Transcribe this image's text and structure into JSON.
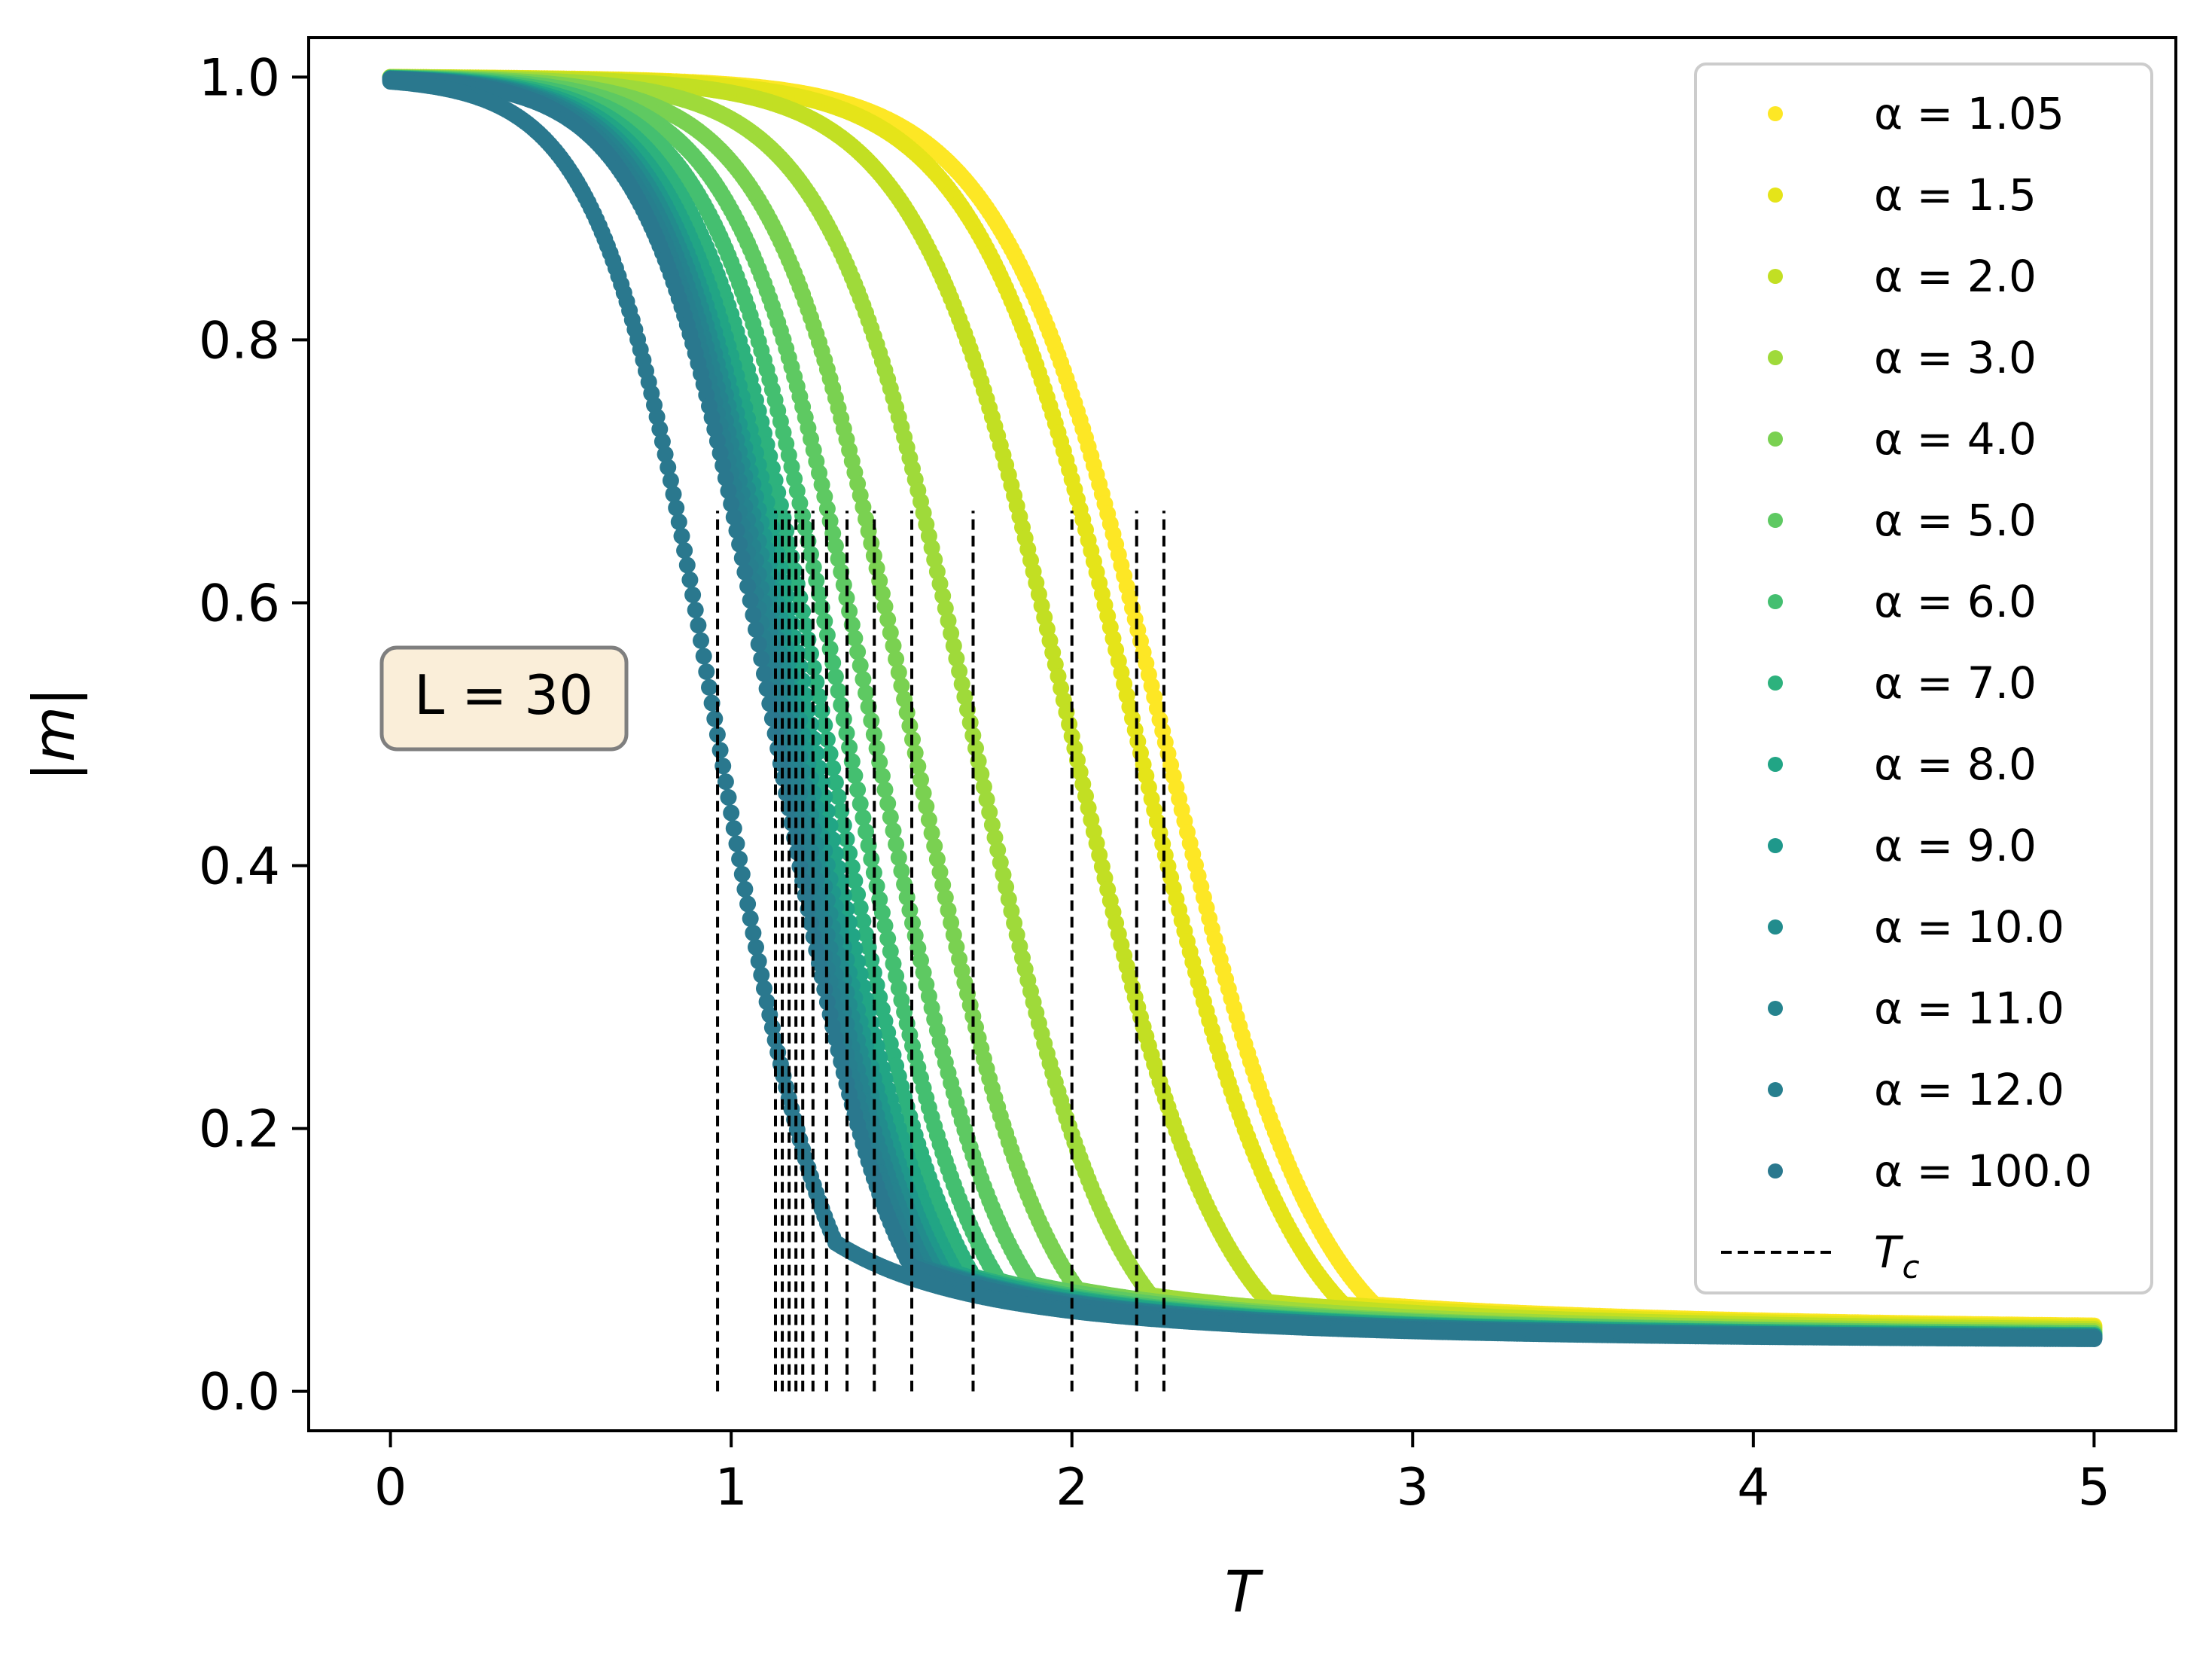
{
  "chart_data": {
    "type": "scatter",
    "title": "",
    "xlabel": "T",
    "ylabel": "|m|",
    "xlim": [
      -0.24,
      5.24
    ],
    "ylim": [
      -0.03,
      1.03
    ],
    "x_ticks": [
      0,
      1,
      2,
      3,
      4,
      5
    ],
    "x_tick_labels": [
      "0",
      "1",
      "2",
      "3",
      "4",
      "5"
    ],
    "y_ticks": [
      0.0,
      0.2,
      0.4,
      0.6,
      0.8,
      1.0
    ],
    "y_tick_labels": [
      "0.0",
      "0.2",
      "0.4",
      "0.6",
      "0.8",
      "1.0"
    ],
    "grid": false,
    "legend_position": "upper-right",
    "annotation": "L = 30",
    "annotation_box_color": "#f5deb3",
    "temperature_range": [
      0.0,
      5.0
    ],
    "series": [
      {
        "name": "α = 1.05",
        "color": "#fde725",
        "tc": 2.27,
        "high_T_value": 0.045
      },
      {
        "name": "α = 1.5",
        "color": "#e5e419",
        "tc": 2.19,
        "high_T_value": 0.044
      },
      {
        "name": "α = 2.0",
        "color": "#c2df23",
        "tc": 2.0,
        "high_T_value": 0.043
      },
      {
        "name": "α = 3.0",
        "color": "#9fda3a",
        "tc": 1.71,
        "high_T_value": 0.042
      },
      {
        "name": "α = 4.0",
        "color": "#7ad151",
        "tc": 1.53,
        "high_T_value": 0.041
      },
      {
        "name": "α = 5.0",
        "color": "#5ec962",
        "tc": 1.42,
        "high_T_value": 0.041
      },
      {
        "name": "α = 6.0",
        "color": "#44bf70",
        "tc": 1.34,
        "high_T_value": 0.04
      },
      {
        "name": "α = 7.0",
        "color": "#2db27d",
        "tc": 1.28,
        "high_T_value": 0.04
      },
      {
        "name": "α = 8.0",
        "color": "#21a585",
        "tc": 1.24,
        "high_T_value": 0.04
      },
      {
        "name": "α = 9.0",
        "color": "#1f988b",
        "tc": 1.21,
        "high_T_value": 0.039
      },
      {
        "name": "α = 10.0",
        "color": "#228c8d",
        "tc": 1.19,
        "high_T_value": 0.039
      },
      {
        "name": "α = 11.0",
        "color": "#25838e",
        "tc": 1.17,
        "high_T_value": 0.039
      },
      {
        "name": "α = 12.0",
        "color": "#277f8e",
        "tc": 1.15,
        "high_T_value": 0.039
      },
      {
        "name": "α = 100.0",
        "color": "#2a788e",
        "tc": 1.13,
        "high_T_value": 0.038
      }
    ],
    "tc_lines": {
      "label": "T_c",
      "label_main": "T",
      "label_sub": "c",
      "style": "dashed",
      "color": "#000000",
      "values": [
        2.27,
        2.19,
        2.0,
        1.71,
        1.53,
        1.42,
        1.34,
        1.28,
        1.24,
        1.21,
        1.19,
        1.17,
        1.15,
        1.13,
        0.96
      ],
      "y_range": [
        0.0,
        0.67
      ]
    },
    "extra_curve": {
      "color": "#2a788e",
      "tc": 0.96,
      "high_T_value": 0.038
    }
  }
}
